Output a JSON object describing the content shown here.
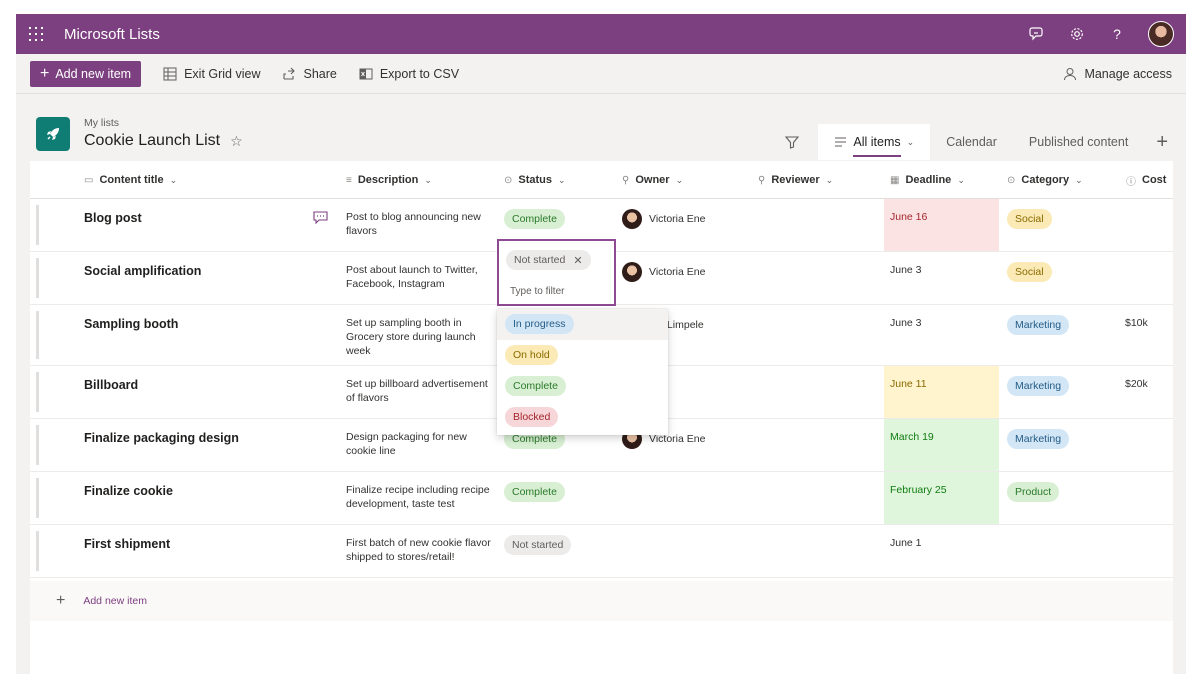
{
  "suitebar": {
    "app_title": "Microsoft Lists",
    "icons": [
      "waffle-icon",
      "feedback-icon",
      "settings-icon",
      "help-icon",
      "profile-avatar"
    ],
    "help_glyph": "?"
  },
  "colors": {
    "brand": "#7c3f7f",
    "complete": "#d8efd3",
    "social": "#fbeab5",
    "marketing": "#d2e6f5",
    "blocked": "#f6d6d8",
    "deadline_red": "#fbe3e4",
    "deadline_yellow": "#fff4ce",
    "deadline_green": "#dff6dd"
  },
  "toolbar": {
    "add_new_item": "Add new item",
    "exit_grid": "Exit Grid view",
    "share": "Share",
    "export_csv": "Export to CSV",
    "manage_access": "Manage access"
  },
  "header": {
    "breadcrumb": "My lists",
    "title": "Cookie Launch List",
    "views": [
      "All items",
      "Calendar",
      "Published content"
    ],
    "active_view": "All items"
  },
  "columns": [
    "Content title",
    "Description",
    "Status",
    "Owner",
    "Reviewer",
    "Deadline",
    "Category",
    "Cost"
  ],
  "rows": [
    {
      "title": "Blog post",
      "description": "Post to blog announcing new flavors",
      "status": "Complete",
      "owner": "Victoria Ene",
      "deadline": "June 16",
      "deadline_state": "overdue",
      "category": "Social",
      "cost": ""
    },
    {
      "title": "Social amplification",
      "description": "Post about launch to Twitter, Facebook, Instagram",
      "status": "Not started",
      "owner": "Victoria Ene",
      "deadline": "June 3",
      "deadline_state": "none",
      "category": "Social",
      "cost": ""
    },
    {
      "title": "Sampling booth",
      "description": "Set up sampling booth in Grocery store during launch week",
      "status": "",
      "owner": "uel Limpele",
      "deadline": "June 3",
      "deadline_state": "none",
      "category": "Marketing",
      "cost": "$10k"
    },
    {
      "title": "Billboard",
      "description": "Set up billboard advertisement of flavors",
      "status": "",
      "owner": "",
      "deadline": "June 11",
      "deadline_state": "soon",
      "category": "Marketing",
      "cost": "$20k"
    },
    {
      "title": "Finalize packaging design",
      "description": "Design packaging for new cookie line",
      "status": "Complete",
      "owner": "Victoria Ene",
      "deadline": "March 19",
      "deadline_state": "done",
      "category": "Marketing",
      "cost": ""
    },
    {
      "title": "Finalize cookie",
      "description": "Finalize recipe including recipe development, taste test",
      "status": "Complete",
      "owner": "",
      "deadline": "February 25",
      "deadline_state": "done",
      "category": "Product",
      "cost": ""
    },
    {
      "title": "First shipment",
      "description": "First batch of new cookie flavor shipped to stores/retail!",
      "status": "Not started",
      "owner": "",
      "deadline": "June 1",
      "deadline_state": "none",
      "category": "",
      "cost": ""
    }
  ],
  "add_row_label": "Add new item",
  "status_editor": {
    "selected": "Not started",
    "filter_placeholder": "Type to filter",
    "options": [
      "In progress",
      "On hold",
      "Complete",
      "Blocked"
    ]
  }
}
